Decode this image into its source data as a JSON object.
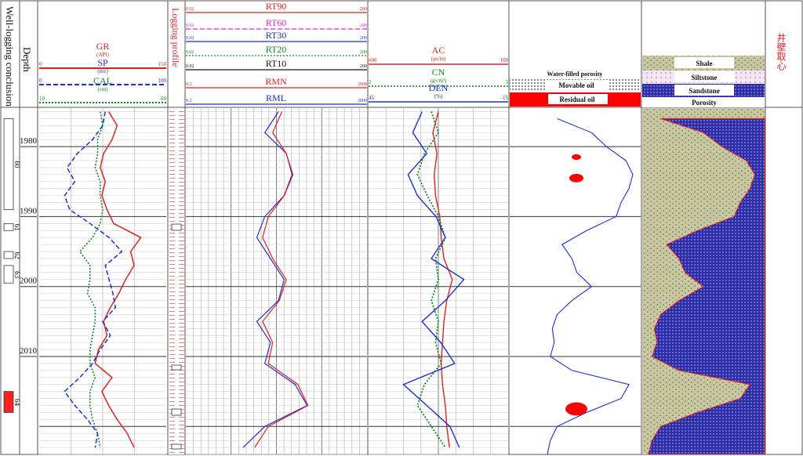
{
  "columns": {
    "conclusion_title": "Well-logging conclusion",
    "depth_title": "Depth",
    "profile_title": "Logging profile",
    "core_title": "井壁取心"
  },
  "colors": {
    "red": "#e32020",
    "blue": "#1f2fd6",
    "green": "#0e8a1e",
    "magenta": "#e020e0",
    "black": "#111111",
    "grid": "#9a9a9a",
    "sand_fill": "#b8b890",
    "shale_fill": "#ffd0d8",
    "porosity_fill": "#2a2a9a",
    "residual_oil": "#ff0000"
  },
  "track1_curves": [
    {
      "name": "GR",
      "unit": "(API)",
      "min": "0",
      "max": "150",
      "color": "red",
      "style": "solid"
    },
    {
      "name": "SP",
      "unit": "(mv)",
      "min": "0",
      "max": "100",
      "color": "blue",
      "style": "dashed"
    },
    {
      "name": "CAL",
      "unit": "(cm)",
      "min": "10",
      "max": "60",
      "color": "green",
      "style": "dotted"
    }
  ],
  "track3_curves": [
    {
      "name": "RT90",
      "min": "0.02",
      "max": "200",
      "color": "red",
      "style": "solid"
    },
    {
      "name": "RT60",
      "min": "0.02",
      "max": "200",
      "color": "magenta",
      "style": "dashed"
    },
    {
      "name": "RT30",
      "min": "0.02",
      "max": "200",
      "color": "blue",
      "style": "solid"
    },
    {
      "name": "RT20",
      "min": "0.02",
      "max": "200",
      "color": "green",
      "style": "dotted"
    },
    {
      "name": "RT10",
      "min": "0.02",
      "max": "200",
      "color": "black",
      "style": "solid"
    },
    {
      "name": "RMN",
      "min": "0.2",
      "max": "2000",
      "color": "red",
      "style": "solid"
    },
    {
      "name": "RML",
      "min": "0.2",
      "max": "2000",
      "color": "blue",
      "style": "solid"
    }
  ],
  "track4_curves": [
    {
      "name": "AC",
      "unit": "(μs/m)",
      "min": "600",
      "max": "100",
      "color": "red",
      "style": "solid"
    },
    {
      "name": "CN",
      "unit": "(g/cm³)",
      "min": "2",
      "max": "3",
      "color": "green",
      "style": "dotted"
    },
    {
      "name": "DEN",
      "unit": "(%)",
      "min": "45",
      "max": "-15",
      "color": "blue",
      "style": "solid"
    }
  ],
  "fluid_legend": [
    "Water-filled porosity",
    "Movable oil",
    "Residual oil"
  ],
  "lithology_legend": [
    "Shale",
    "Siltstone",
    "Sandstone",
    "Porosity"
  ],
  "conclusion_labels": [
    "60",
    "61",
    "62",
    "63",
    "64"
  ],
  "chart_data": {
    "type": "well-log",
    "depth_axis": {
      "ticks": [
        1980,
        1990,
        2000,
        2010
      ],
      "range": [
        1974.5,
        2024
      ]
    },
    "series": [
      {
        "name": "GR",
        "depth": [
          1975,
          1977,
          1979,
          1981,
          1983,
          1985,
          1987,
          1989,
          1991,
          1993,
          1995,
          1997,
          1999,
          2001,
          2003,
          2005,
          2007,
          2009,
          2011,
          2013,
          2015,
          2017,
          2019,
          2021,
          2023
        ],
        "values": [
          82,
          92,
          86,
          76,
          72,
          78,
          74,
          80,
          88,
          120,
          108,
          112,
          102,
          94,
          84,
          76,
          80,
          70,
          66,
          86,
          74,
          82,
          92,
          104,
          112
        ]
      },
      {
        "name": "SP",
        "depth": [
          1975,
          1977,
          1979,
          1981,
          1983,
          1985,
          1987,
          1989,
          1991,
          1993,
          1995,
          1997,
          1999,
          2001,
          2003,
          2005,
          2007,
          2009,
          2011,
          2013,
          2015,
          2017,
          2019,
          2021,
          2023
        ],
        "values": [
          52,
          50,
          42,
          30,
          22,
          28,
          20,
          24,
          40,
          55,
          65,
          52,
          55,
          58,
          60,
          50,
          56,
          48,
          42,
          32,
          20,
          28,
          38,
          46,
          44
        ]
      },
      {
        "name": "CAL",
        "depth": [
          1975,
          1977,
          1979,
          1981,
          1983,
          1985,
          1987,
          1989,
          1991,
          1993,
          1995,
          1997,
          1999,
          2001,
          2003,
          2005,
          2007,
          2009,
          2011,
          2013,
          2015,
          2017,
          2019,
          2021,
          2023
        ],
        "values": [
          34,
          35,
          33,
          33,
          32,
          34,
          34,
          35,
          34,
          31,
          26,
          30,
          30,
          29,
          32,
          32,
          31,
          30,
          30,
          32,
          30,
          30,
          31,
          33,
          34
        ]
      },
      {
        "name": "RT",
        "depth": [
          1975,
          1978,
          1981,
          1984,
          1987,
          1990,
          1993,
          1996,
          1999,
          2002,
          2005,
          2008,
          2011,
          2014,
          2017,
          2020,
          2023
        ],
        "values": [
          6,
          3,
          9,
          12,
          8,
          3,
          2,
          4,
          8,
          6,
          2,
          4,
          3,
          14,
          26,
          3,
          1
        ]
      },
      {
        "name": "RMN",
        "depth": [
          1975,
          1978,
          1981,
          1984,
          1987,
          1990,
          1993,
          1996,
          1999,
          2002,
          2005,
          2008,
          2011,
          2014,
          2017,
          2020,
          2023
        ],
        "values": [
          8,
          5,
          10,
          14,
          9,
          4,
          3,
          5,
          10,
          7,
          3,
          5,
          4,
          18,
          30,
          4,
          2
        ]
      },
      {
        "name": "AC",
        "depth": [
          1975,
          1978,
          1981,
          1984,
          1987,
          1990,
          1993,
          1996,
          1999,
          2002,
          2005,
          2008,
          2011,
          2014,
          2017,
          2020,
          2023
        ],
        "values": [
          350,
          370,
          355,
          365,
          360,
          345,
          340,
          330,
          300,
          320,
          330,
          335,
          340,
          335,
          325,
          320,
          310
        ]
      },
      {
        "name": "CN",
        "depth": [
          1975,
          1978,
          1981,
          1984,
          1987,
          1990,
          1993,
          1996,
          1999,
          2002,
          2005,
          2008,
          2011,
          2014,
          2017,
          2020,
          2023
        ],
        "values": [
          2.45,
          2.5,
          2.4,
          2.35,
          2.42,
          2.5,
          2.55,
          2.48,
          2.5,
          2.45,
          2.5,
          2.48,
          2.52,
          2.4,
          2.35,
          2.45,
          2.55
        ]
      },
      {
        "name": "DEN",
        "depth": [
          1975,
          1978,
          1981,
          1984,
          1987,
          1990,
          1993,
          1996,
          1999,
          2002,
          2005,
          2008,
          2011,
          2014,
          2017,
          2020,
          2023
        ],
        "values": [
          22,
          26,
          20,
          28,
          24,
          16,
          12,
          18,
          4,
          12,
          22,
          14,
          8,
          30,
          20,
          10,
          6
        ]
      },
      {
        "name": "Porosity",
        "depth": [
          1976,
          1978,
          1980,
          1982,
          1984,
          1986,
          1988,
          1990,
          1992,
          1994,
          1996,
          1998,
          2000,
          2002,
          2004,
          2006,
          2008,
          2010,
          2012,
          2014,
          2016,
          2018,
          2020,
          2022,
          2024
        ],
        "values": [
          0.85,
          0.5,
          0.35,
          0.15,
          0.08,
          0.12,
          0.2,
          0.25,
          0.55,
          0.8,
          0.7,
          0.65,
          0.5,
          0.7,
          0.85,
          0.9,
          0.88,
          0.92,
          0.7,
          0.12,
          0.2,
          0.55,
          0.85,
          0.92,
          0.95
        ]
      }
    ]
  }
}
